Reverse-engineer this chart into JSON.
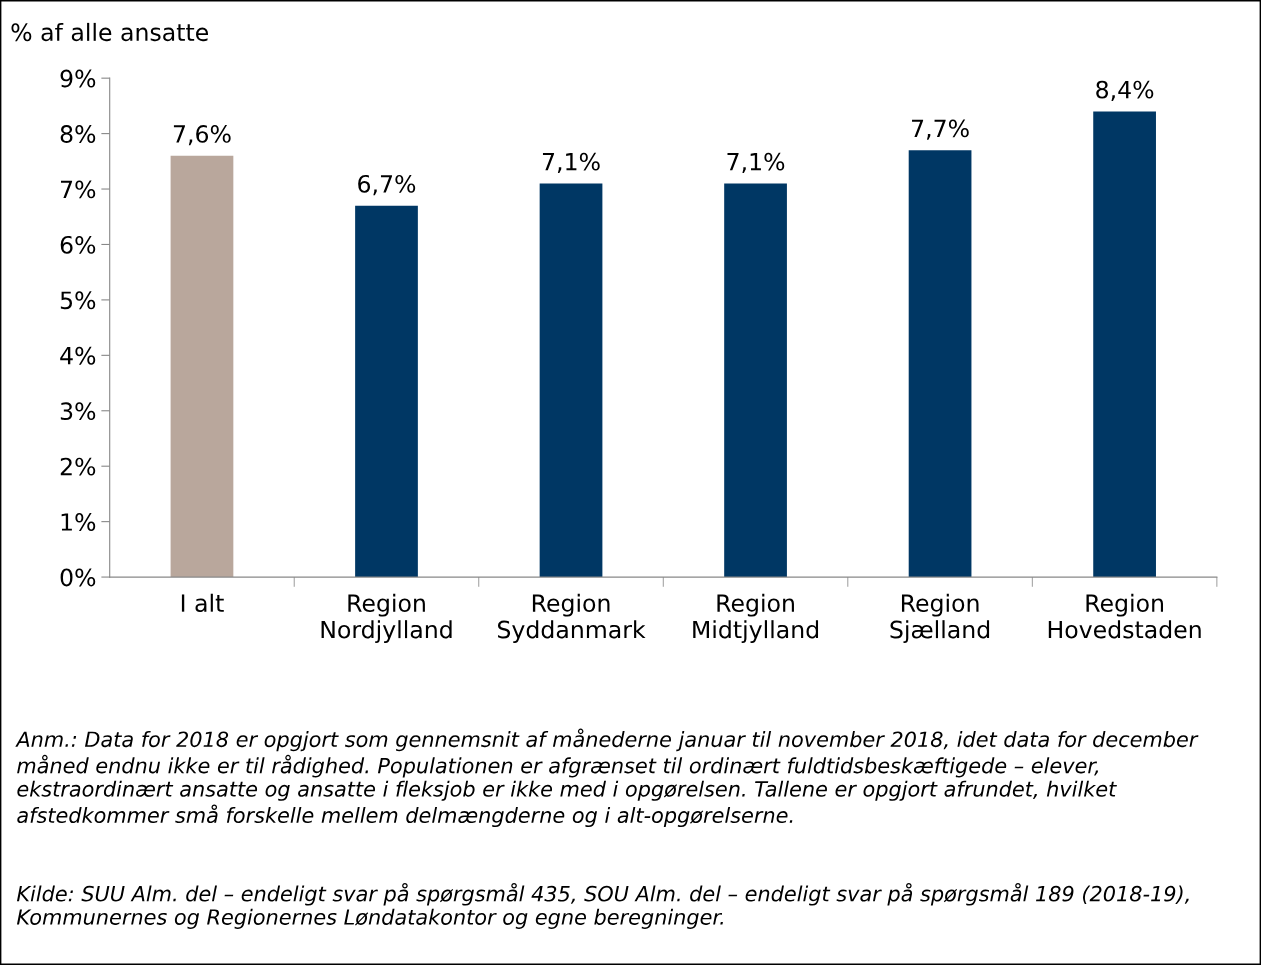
{
  "chart_data": {
    "type": "bar",
    "ylabel": "% af alle ansatte",
    "categories": [
      "I alt",
      "Region\nNordjylland",
      "Region\nSyddanmark",
      "Region\nMidtjylland",
      "Region\nSjælland",
      "Region\nHovedstaden"
    ],
    "values": [
      7.6,
      6.7,
      7.1,
      7.1,
      7.7,
      8.4
    ],
    "colors": [
      "#b9a79c",
      "#003764",
      "#003764",
      "#003764",
      "#003764",
      "#003764"
    ],
    "value_labels": [
      "7,6%",
      "6,7%",
      "7,1%",
      "7,1%",
      "7,7%",
      "8,4%"
    ],
    "ylim": [
      0,
      9
    ],
    "yticks": [
      {
        "value": 0,
        "label": "0%"
      },
      {
        "value": 1,
        "label": "1%"
      },
      {
        "value": 2,
        "label": "2%"
      },
      {
        "value": 3,
        "label": "3%"
      },
      {
        "value": 4,
        "label": "4%"
      },
      {
        "value": 5,
        "label": "5%"
      },
      {
        "value": 6,
        "label": "6%"
      },
      {
        "value": 7,
        "label": "7%"
      },
      {
        "value": 8,
        "label": "8%"
      },
      {
        "value": 9,
        "label": "9%"
      }
    ],
    "grid": false,
    "legend": false,
    "annotations": [
      "Anm.: Data for 2018 er opgjort som gennemsnit af månederne januar til november 2018, idet data for december måned endnu ikke er til rådighed. Populationen er afgrænset til ordinært fuldtidsbeskæftigede – elever, ekstraordinært ansatte og ansatte i fleksjob er ikke med i opgørelsen. Tallene er opgjort afrundet, hvilket afstedkommer små forskelle mellem delmængderne og i alt-opgørelserne.",
      "Kilde: SUU Alm. del – endeligt svar på spørgsmål 435, SOU Alm. del – endeligt svar på spørgsmål 189 (2018-19), Kommunernes og Regionernes Løndatakontor og egne beregninger."
    ]
  }
}
